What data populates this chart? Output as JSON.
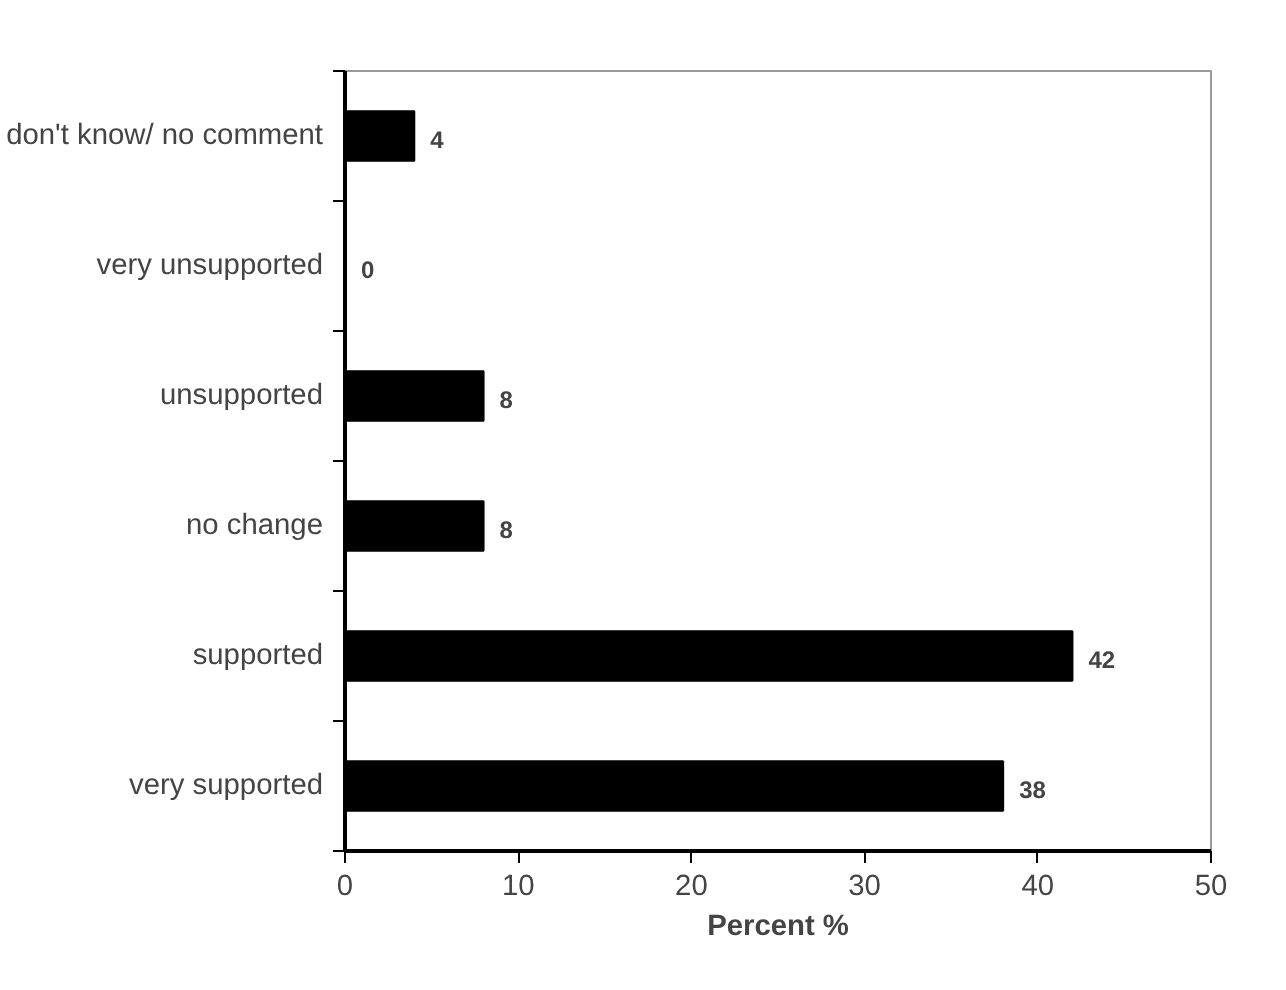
{
  "chart_data": {
    "type": "bar",
    "orientation": "horizontal",
    "categories": [
      "don't know/ no comment",
      "very unsupported",
      "unsupported",
      "no change",
      "supported",
      "very supported"
    ],
    "values": [
      4,
      0,
      8,
      8,
      42,
      38
    ],
    "color": "#000000",
    "xlim": [
      0,
      50
    ],
    "xticks": [
      0,
      10,
      20,
      30,
      40,
      50
    ],
    "xlabel": "Percent %",
    "data_labels": true,
    "grid": false
  }
}
